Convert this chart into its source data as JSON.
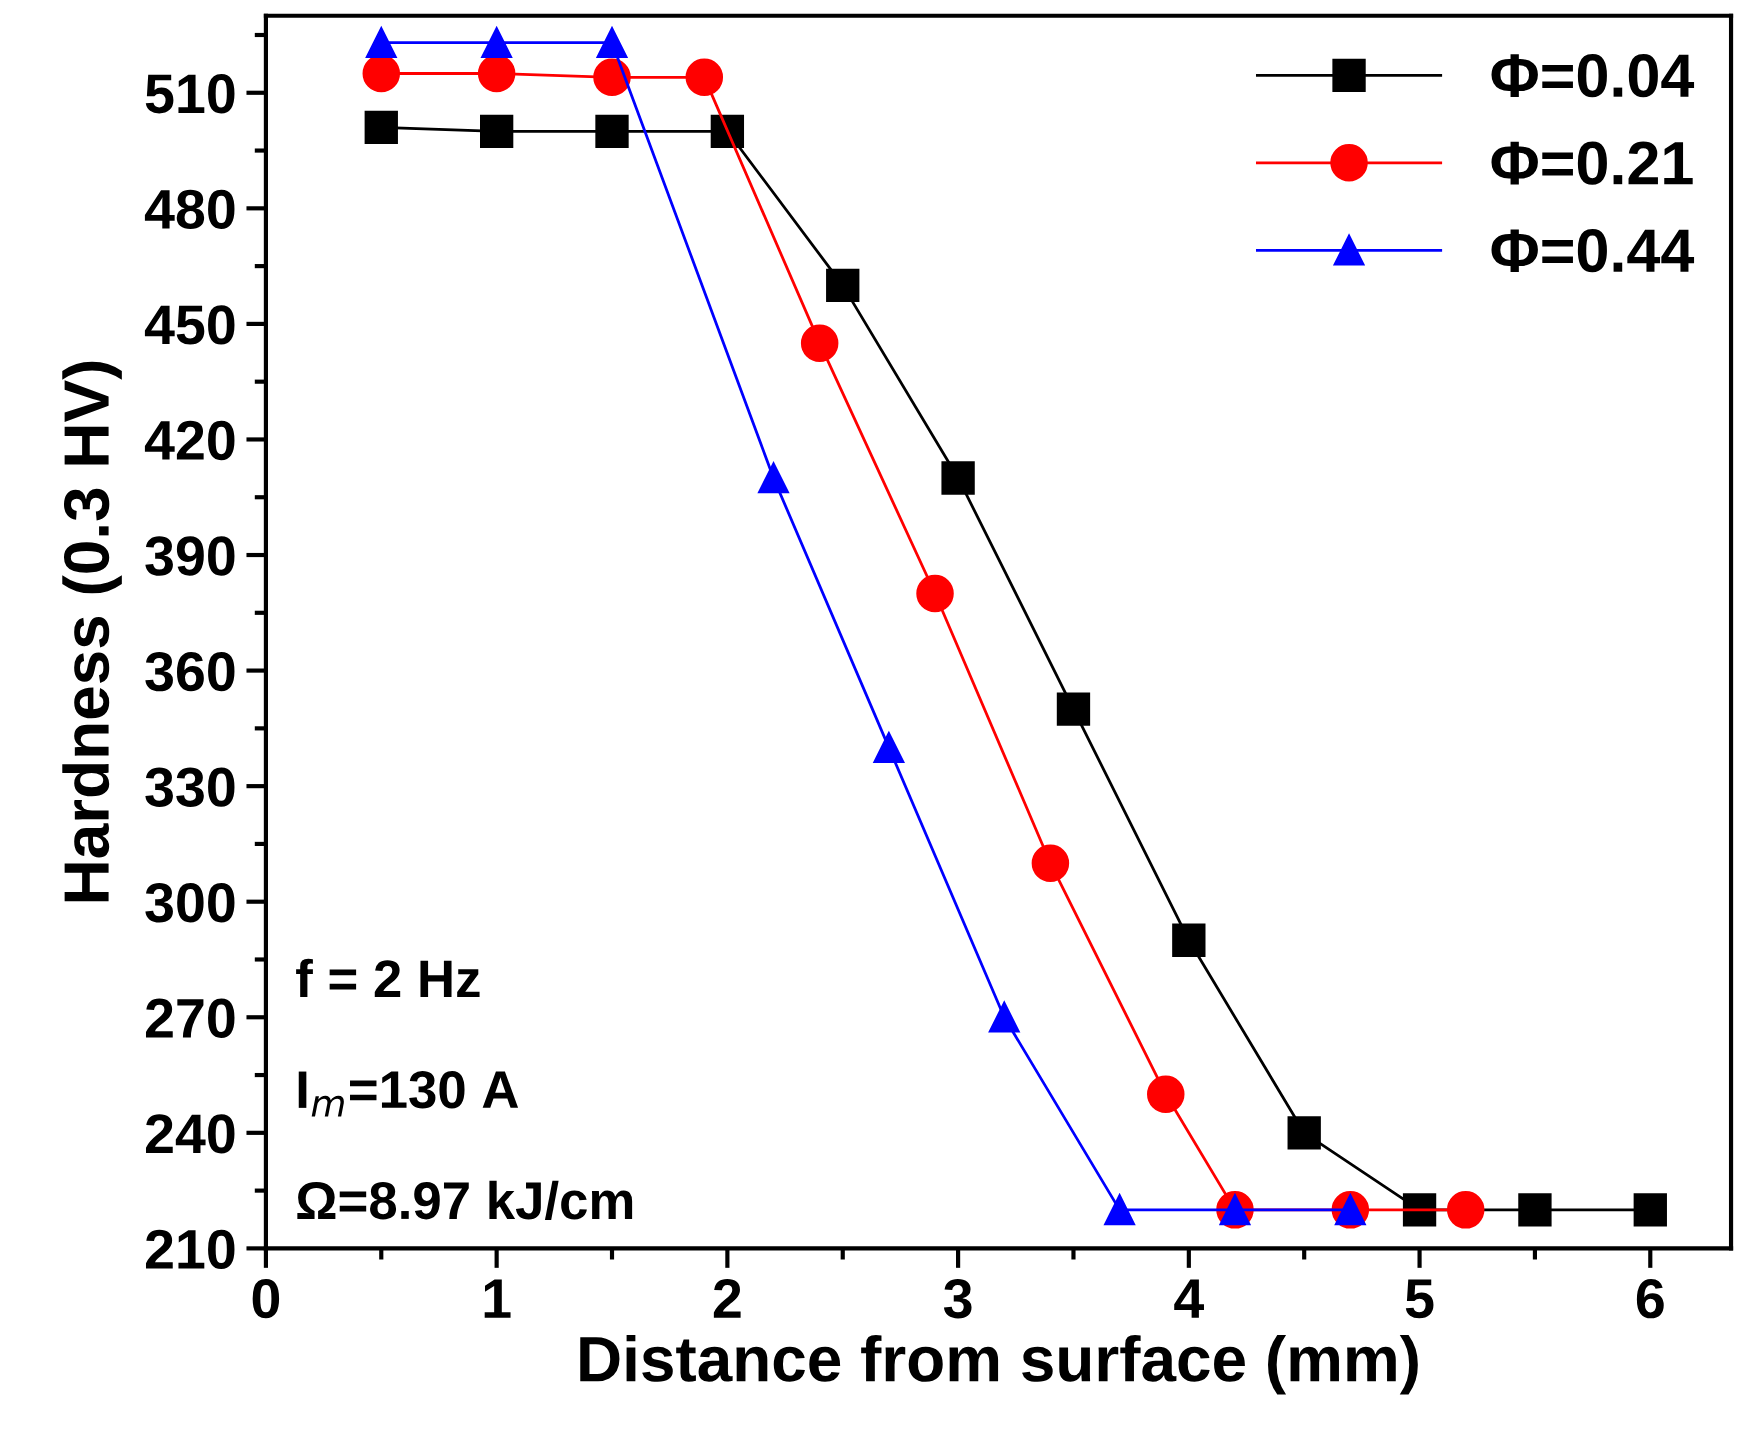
{
  "chart_data": {
    "type": "line",
    "xlabel": "Distance from surface (mm)",
    "ylabel": "Hardness (0.3 HV)",
    "xlim": [
      0,
      6.35
    ],
    "xticks": [
      0,
      1,
      2,
      3,
      4,
      5,
      6
    ],
    "ylim": [
      210,
      530
    ],
    "yticks": [
      210,
      240,
      270,
      300,
      330,
      360,
      390,
      420,
      450,
      480,
      510
    ],
    "grid": false,
    "legend": "top right",
    "series": [
      {
        "name": "Φ=0.04",
        "color": "#000000",
        "marker": "square",
        "x": [
          0.5,
          1,
          1.5,
          2,
          2.5,
          3,
          3.5,
          4,
          4.5,
          5,
          5.5,
          6
        ],
        "values": [
          501,
          500,
          500,
          500,
          460,
          410,
          350,
          290,
          240,
          220,
          220,
          220
        ]
      },
      {
        "name": "Φ=0.21",
        "color": "#ff0000",
        "marker": "circle",
        "x": [
          0.5,
          1,
          1.5,
          1.9,
          2.4,
          2.9,
          3.4,
          3.9,
          4.2,
          4.7,
          5.2
        ],
        "values": [
          515,
          515,
          514,
          514,
          445,
          380,
          310,
          250,
          220,
          220,
          220
        ]
      },
      {
        "name": "Φ=0.44",
        "color": "#0000ff",
        "marker": "triangle",
        "x": [
          0.5,
          1,
          1.5,
          2.2,
          2.7,
          3.2,
          3.7,
          4.2,
          4.7
        ],
        "values": [
          523,
          523,
          523,
          410,
          340,
          270,
          220,
          220,
          220
        ]
      }
    ],
    "annotations": [
      "f = 2 Hz",
      "I$_{m}$=130 A",
      "Ω=8.97 kJ/cm"
    ]
  }
}
